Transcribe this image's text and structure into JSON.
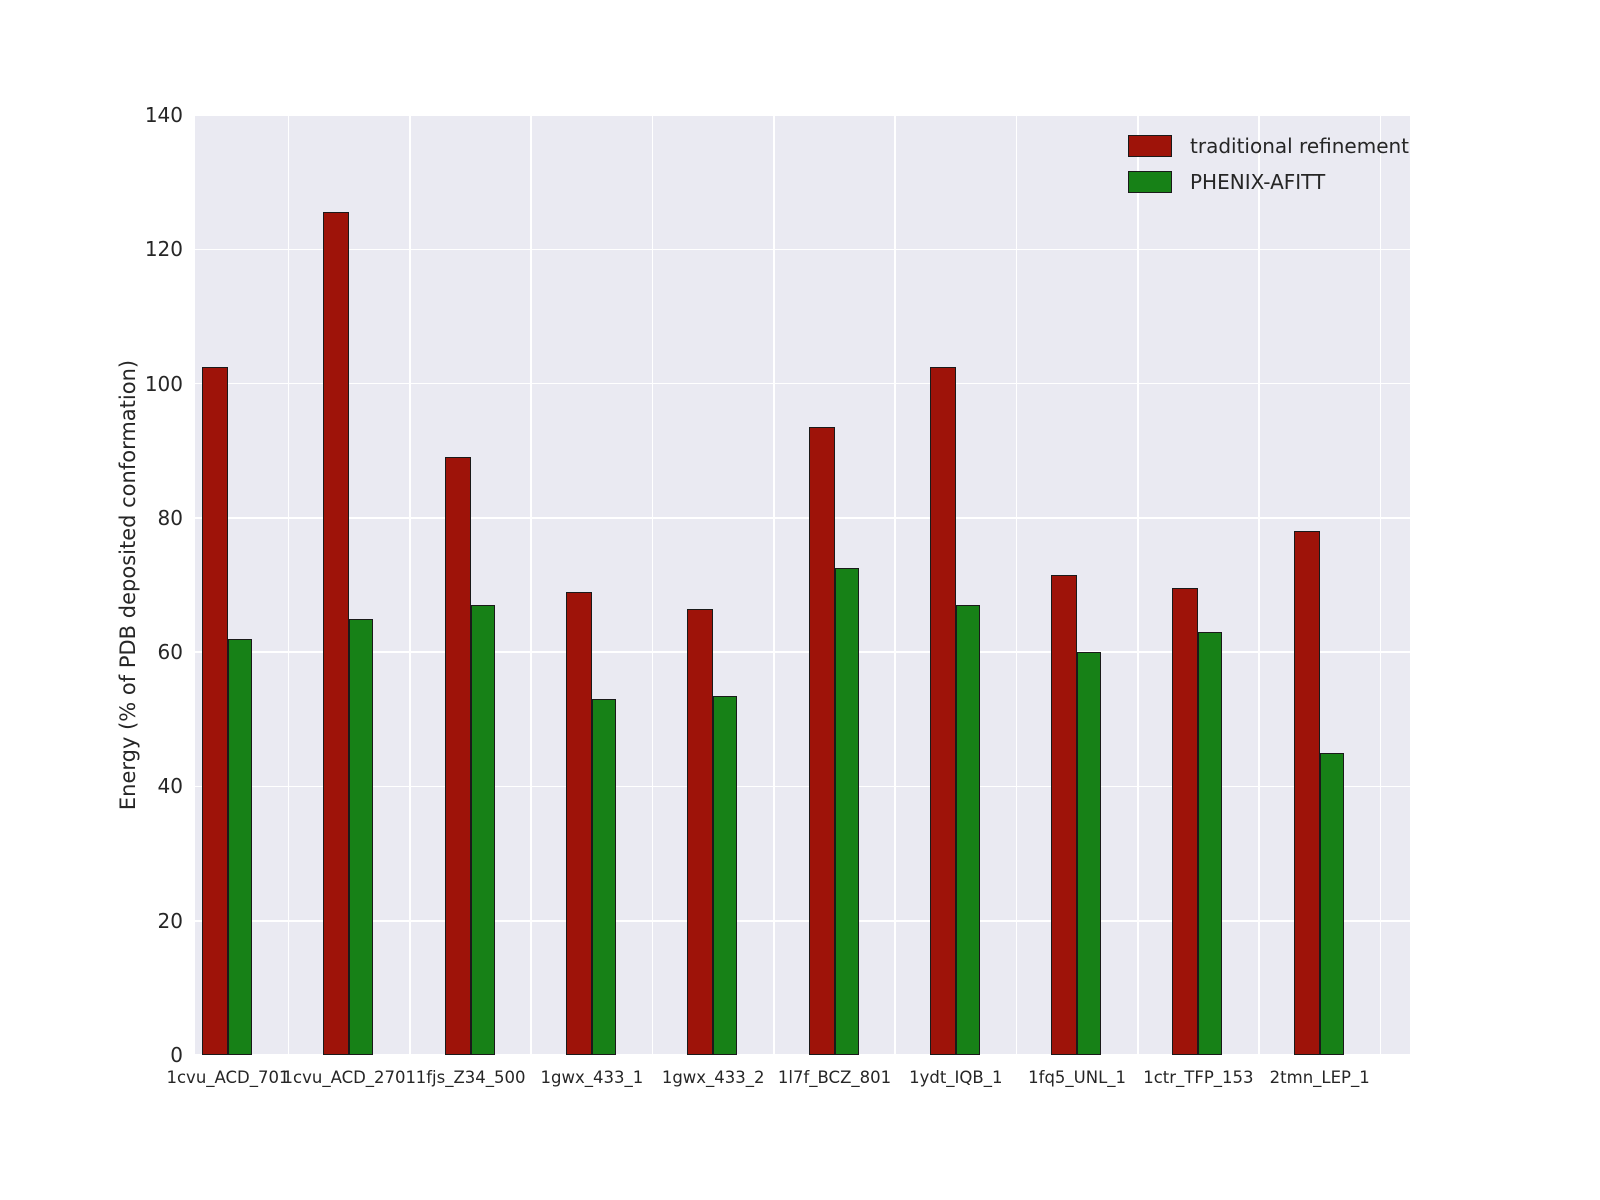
{
  "chart_data": {
    "type": "bar",
    "title": "",
    "xlabel": "",
    "ylabel": "Energy (% of PDB deposited conformation)",
    "ylim": [
      0,
      140
    ],
    "yticks": [
      0,
      20,
      40,
      60,
      80,
      100,
      120,
      140
    ],
    "grid": true,
    "plot_background": "#eaeaf2",
    "grid_color": "#ffffff",
    "legend_position": "upper right",
    "categories": [
      "1cvu_ACD_701",
      "1cvu_ACD_2701",
      "1fjs_Z34_500",
      "1gwx_433_1",
      "1gwx_433_2",
      "1l7f_BCZ_801",
      "1ydt_IQB_1",
      "1fq5_UNL_1",
      "1ctr_TFP_153",
      "2tmn_LEP_1"
    ],
    "series": [
      {
        "name": "traditional refinement",
        "color": "#9e1309",
        "values": [
          102.5,
          125.5,
          89.0,
          69.0,
          66.5,
          93.5,
          102.5,
          71.5,
          69.5,
          78.0
        ]
      },
      {
        "name": "PHENIX-AFITT",
        "color": "#178117",
        "values": [
          62.0,
          65.0,
          67.0,
          53.0,
          53.5,
          72.5,
          67.0,
          60.0,
          63.0,
          45.0
        ]
      }
    ]
  }
}
